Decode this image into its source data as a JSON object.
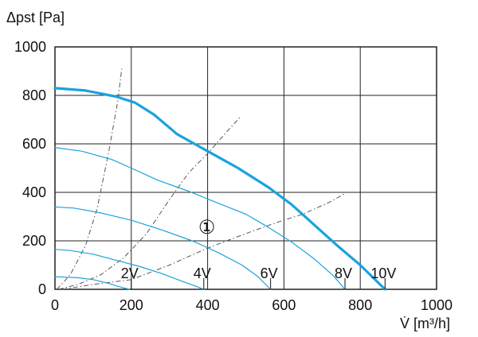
{
  "chart_data": {
    "type": "line",
    "ylabel": "Δpst [Pa]",
    "xlabel": "V̇ [m³/h]",
    "xlim": [
      0,
      1000
    ],
    "ylim": [
      0,
      1000
    ],
    "x_ticks": [
      "0",
      "200",
      "400",
      "600",
      "800",
      "1000"
    ],
    "y_ticks": [
      "0",
      "200",
      "400",
      "600",
      "800",
      "1000"
    ],
    "grid": true,
    "annotation": "①",
    "colors": {
      "fan": "#1aa3dc",
      "system": "#555555",
      "grid": "#222222"
    },
    "series": [
      {
        "name": "2V",
        "label_at": [
          200,
          0
        ],
        "style": "thin",
        "points": [
          [
            0,
            52
          ],
          [
            30,
            50
          ],
          [
            60,
            48
          ],
          [
            100,
            40
          ],
          [
            140,
            25
          ],
          [
            170,
            10
          ],
          [
            195,
            0
          ]
        ]
      },
      {
        "name": "4V",
        "label_at": [
          390,
          0
        ],
        "style": "thin",
        "points": [
          [
            0,
            165
          ],
          [
            40,
            160
          ],
          [
            100,
            145
          ],
          [
            160,
            120
          ],
          [
            220,
            95
          ],
          [
            280,
            65
          ],
          [
            330,
            35
          ],
          [
            365,
            15
          ],
          [
            390,
            0
          ]
        ]
      },
      {
        "name": "6V",
        "label_at": [
          565,
          0
        ],
        "style": "thin",
        "points": [
          [
            0,
            340
          ],
          [
            50,
            335
          ],
          [
            120,
            315
          ],
          [
            200,
            285
          ],
          [
            280,
            245
          ],
          [
            360,
            200
          ],
          [
            430,
            150
          ],
          [
            490,
            100
          ],
          [
            530,
            55
          ],
          [
            565,
            0
          ]
        ]
      },
      {
        "name": "8V",
        "label_at": [
          760,
          0
        ],
        "style": "thin",
        "points": [
          [
            0,
            585
          ],
          [
            70,
            570
          ],
          [
            150,
            535
          ],
          [
            200,
            500
          ],
          [
            270,
            450
          ],
          [
            350,
            405
          ],
          [
            420,
            360
          ],
          [
            500,
            310
          ],
          [
            560,
            255
          ],
          [
            620,
            195
          ],
          [
            680,
            125
          ],
          [
            730,
            55
          ],
          [
            760,
            0
          ]
        ]
      },
      {
        "name": "10V",
        "label_at": [
          865,
          0
        ],
        "style": "thick",
        "points": [
          [
            0,
            830
          ],
          [
            80,
            820
          ],
          [
            160,
            795
          ],
          [
            210,
            770
          ],
          [
            260,
            720
          ],
          [
            320,
            640
          ],
          [
            400,
            570
          ],
          [
            480,
            500
          ],
          [
            560,
            420
          ],
          [
            620,
            350
          ],
          [
            680,
            265
          ],
          [
            740,
            180
          ],
          [
            800,
            100
          ],
          [
            865,
            0
          ]
        ]
      }
    ],
    "system_curves": [
      {
        "points": [
          [
            5,
            0
          ],
          [
            40,
            60
          ],
          [
            80,
            180
          ],
          [
            110,
            330
          ],
          [
            140,
            560
          ],
          [
            165,
            780
          ],
          [
            175,
            910
          ]
        ]
      },
      {
        "points": [
          [
            10,
            0
          ],
          [
            60,
            20
          ],
          [
            120,
            60
          ],
          [
            180,
            130
          ],
          [
            240,
            230
          ],
          [
            300,
            370
          ],
          [
            350,
            480
          ],
          [
            400,
            560
          ],
          [
            450,
            650
          ],
          [
            485,
            710
          ]
        ]
      },
      {
        "points": [
          [
            20,
            0
          ],
          [
            100,
            20
          ],
          [
            200,
            40
          ],
          [
            300,
            100
          ],
          [
            400,
            170
          ],
          [
            500,
            230
          ],
          [
            580,
            275
          ],
          [
            650,
            310
          ],
          [
            720,
            360
          ],
          [
            760,
            395
          ]
        ]
      }
    ]
  }
}
